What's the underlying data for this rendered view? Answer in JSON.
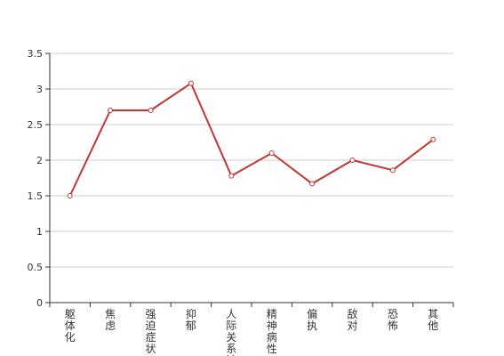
{
  "chart_data": {
    "type": "line",
    "categories": [
      "躯体化",
      "焦虑",
      "强迫症状",
      "抑郁",
      "人际关系敏",
      "精神病性",
      "偏执",
      "敌对",
      "恐怖",
      "其他"
    ],
    "series": [
      {
        "values": [
          1.5,
          2.7,
          2.7,
          3.08,
          1.78,
          2.1,
          1.67,
          2.0,
          1.86,
          2.29
        ]
      }
    ],
    "y_ticks": [
      "0",
      "0.5",
      "1",
      "1.5",
      "2",
      "2.5",
      "3",
      "3.5"
    ],
    "ylim": [
      0,
      3.5
    ],
    "grid": true,
    "colors": {
      "line": "#c23531",
      "grid": "#cccccc",
      "axis": "#333333"
    }
  }
}
